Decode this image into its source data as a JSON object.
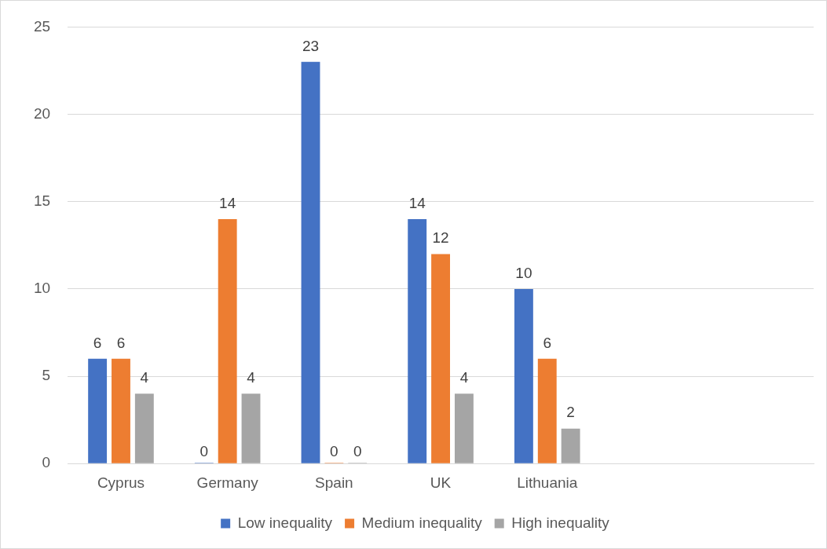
{
  "chart_data": {
    "type": "bar",
    "categories": [
      "Cyprus",
      "Germany",
      "Spain",
      "UK",
      "Lithuania",
      null,
      null
    ],
    "series": [
      {
        "name": "Low inequality",
        "color": "#4472c4",
        "values": [
          6,
          0,
          23,
          14,
          10,
          null,
          null
        ]
      },
      {
        "name": "Medium inequality",
        "color": "#ed7d31",
        "values": [
          6,
          14,
          0,
          12,
          6,
          null,
          null
        ]
      },
      {
        "name": "High inequality",
        "color": "#a5a5a5",
        "values": [
          4,
          4,
          0,
          4,
          2,
          null,
          null
        ]
      }
    ],
    "ylim": [
      0,
      25
    ],
    "yticks": [
      0,
      5,
      10,
      15,
      20,
      25
    ],
    "grid": "y",
    "legend": "bottom",
    "data_labels": true
  }
}
